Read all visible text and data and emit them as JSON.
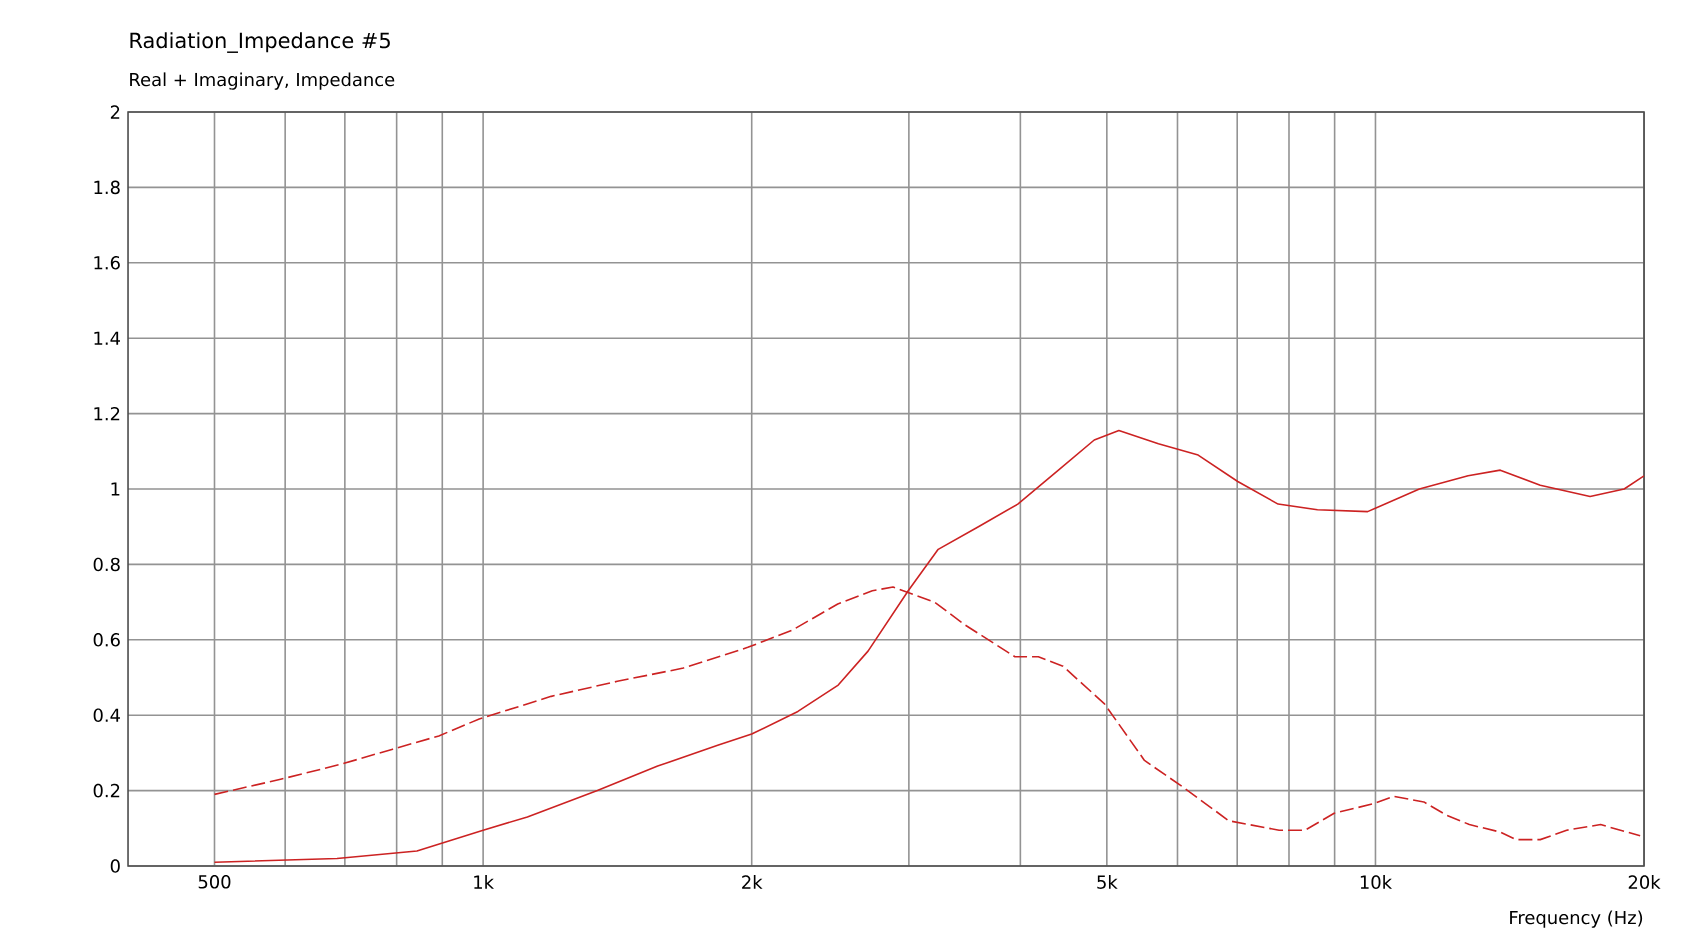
{
  "chart_data": {
    "type": "line",
    "title": "Radiation_Impedance #5",
    "subtitle": "Real + Imaginary, Impedance",
    "xlabel": "Frequency  (Hz)",
    "log": "x",
    "grid": true,
    "marker": "none",
    "xlim": [
      400,
      20000
    ],
    "ylim": [
      0,
      2
    ],
    "xticks": [
      {
        "value": 500,
        "label": "500"
      },
      {
        "value": 600,
        "label": null
      },
      {
        "value": 700,
        "label": null
      },
      {
        "value": 800,
        "label": null
      },
      {
        "value": 900,
        "label": null
      },
      {
        "value": 1000,
        "label": "1k"
      },
      {
        "value": 2000,
        "label": "2k"
      },
      {
        "value": 3000,
        "label": null
      },
      {
        "value": 4000,
        "label": null
      },
      {
        "value": 5000,
        "label": "5k"
      },
      {
        "value": 6000,
        "label": null
      },
      {
        "value": 7000,
        "label": null
      },
      {
        "value": 8000,
        "label": null
      },
      {
        "value": 9000,
        "label": null
      },
      {
        "value": 10000,
        "label": "10k"
      },
      {
        "value": 20000,
        "label": "20k"
      }
    ],
    "yticks": [
      0,
      0.2,
      0.4,
      0.6,
      0.8,
      1,
      1.2,
      1.4,
      1.6,
      1.8,
      2
    ],
    "series": [
      {
        "color": "#cc2222",
        "line_style": "solid",
        "x": [
          500,
          686,
          843,
          1000,
          1121,
          1343,
          1569,
          1832,
          2000,
          2253,
          2500,
          2700,
          2995,
          3236,
          3590,
          3974,
          4413,
          4840,
          5158,
          5712,
          6329,
          7010,
          7780,
          8610,
          9800,
          11200,
          12700,
          13800,
          15300,
          17400,
          19000,
          20000
        ],
        "values": [
          0.01,
          0.02,
          0.04,
          0.095,
          0.13,
          0.2,
          0.265,
          0.32,
          0.35,
          0.41,
          0.48,
          0.57,
          0.73,
          0.84,
          0.9,
          0.96,
          1.05,
          1.13,
          1.155,
          1.12,
          1.09,
          1.02,
          0.96,
          0.945,
          0.94,
          1.0,
          1.035,
          1.05,
          1.01,
          0.98,
          1.0,
          1.035
        ]
      },
      {
        "color": "#cc2222",
        "line_style": "dashed",
        "x": [
          500,
          593,
          693,
          792,
          892,
          990,
          1192,
          1414,
          1677,
          1980,
          2218,
          2497,
          2730,
          2880,
          3205,
          3465,
          3945,
          4190,
          4465,
          4970,
          5510,
          6080,
          6850,
          7800,
          8340,
          8990,
          9940,
          10480,
          11330,
          12010,
          12740,
          13800,
          14370,
          15300,
          16380,
          17880,
          19800
        ],
        "values": [
          0.19,
          0.23,
          0.27,
          0.31,
          0.345,
          0.39,
          0.45,
          0.49,
          0.525,
          0.58,
          0.625,
          0.695,
          0.73,
          0.74,
          0.7,
          0.64,
          0.555,
          0.555,
          0.53,
          0.43,
          0.28,
          0.21,
          0.12,
          0.095,
          0.095,
          0.14,
          0.165,
          0.185,
          0.17,
          0.135,
          0.11,
          0.09,
          0.07,
          0.07,
          0.095,
          0.11,
          0.08
        ]
      }
    ]
  }
}
